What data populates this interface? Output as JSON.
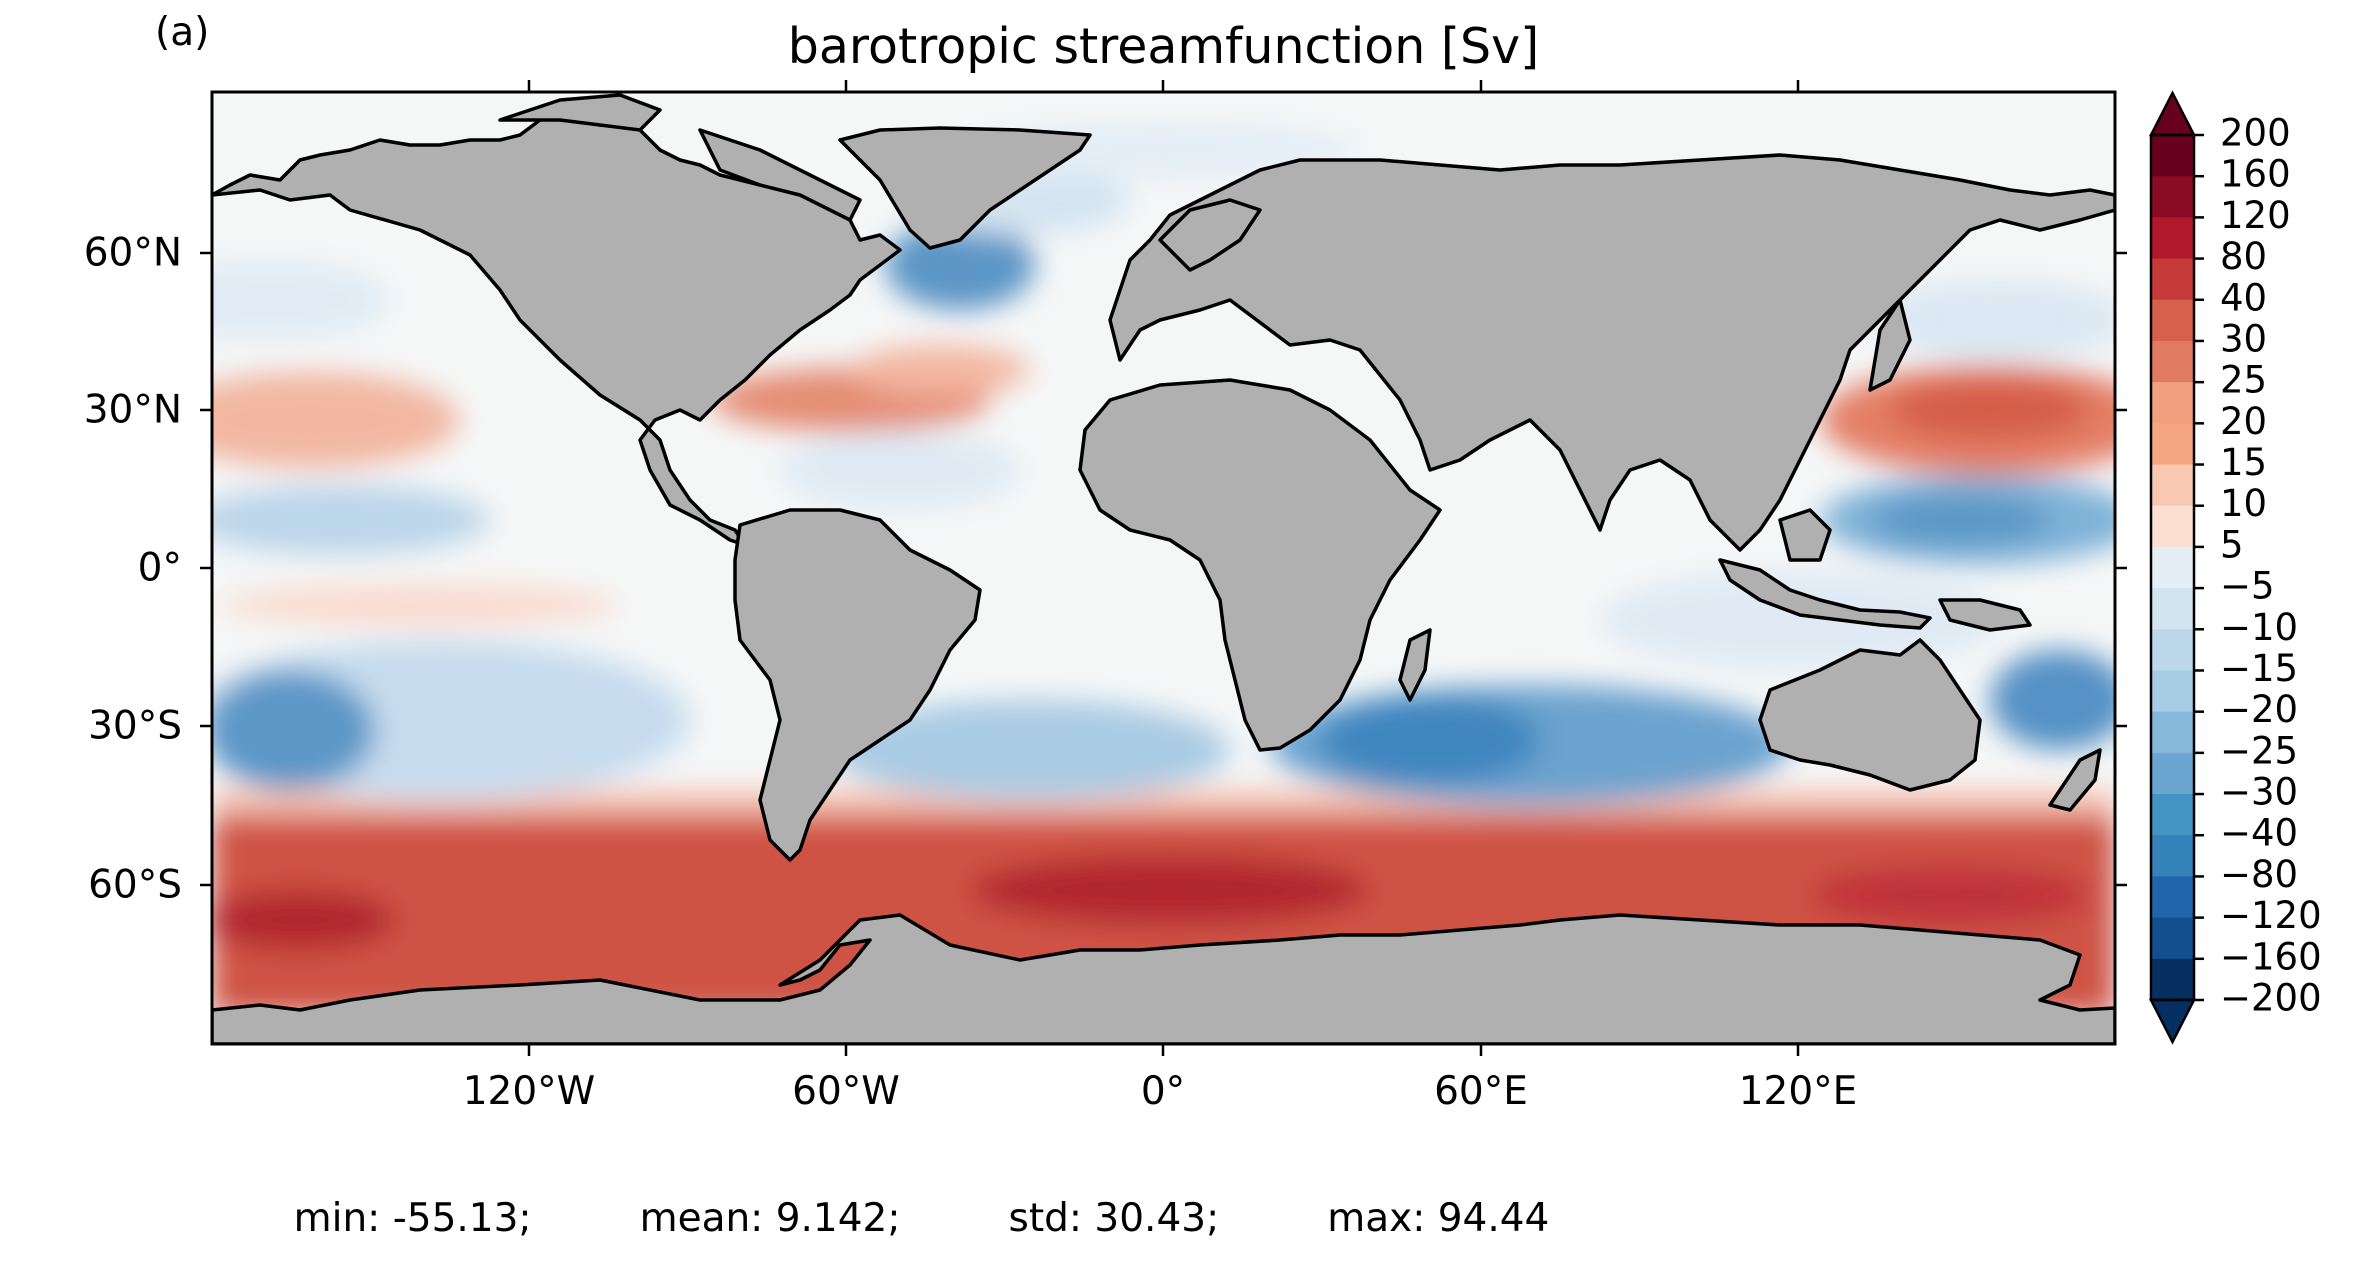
{
  "panel_label": "(a)",
  "title": "barotropic streamfunction [Sv]",
  "lat_ticks": [
    "60°N",
    "30°N",
    "0°",
    "30°S",
    "60°S"
  ],
  "lon_ticks": [
    "120°W",
    "60°W",
    "0°",
    "60°E",
    "120°E"
  ],
  "colorbar": {
    "labels": [
      "200",
      "160",
      "120",
      "80",
      "40",
      "30",
      "25",
      "20",
      "15",
      "10",
      "5",
      "−5",
      "−10",
      "−15",
      "−20",
      "−25",
      "−30",
      "−40",
      "−80",
      "−120",
      "−160",
      "−200"
    ],
    "colors": [
      "#67001f",
      "#8b0a23",
      "#b2182b",
      "#c63a3a",
      "#d6604d",
      "#e07b61",
      "#f0a07f",
      "#f4a582",
      "#f9c8b0",
      "#fbe0d2",
      "#f5f5f5",
      "#e4eef5",
      "#d1e5f0",
      "#bcd8ea",
      "#a6cde3",
      "#86b8d9",
      "#6aa6cf",
      "#4393c3",
      "#3581ba",
      "#2166ac",
      "#134f8e",
      "#053061"
    ],
    "extend": "both"
  },
  "stats": {
    "min": "min: -55.13;",
    "mean": "mean: 9.142;",
    "std": "std: 30.43;",
    "max": "max: 94.44"
  },
  "palette": {
    "land": "#b0b0b0",
    "ocean_neutral": "#f5f7f7",
    "acc_red": "#cf5244",
    "acc_dark": "#b2262d",
    "gyre_blue": "#6aa3cf",
    "gyre_light": "#c6dcee",
    "gyre_red": "#e47f66",
    "gyre_pink": "#f6c5b3"
  }
}
